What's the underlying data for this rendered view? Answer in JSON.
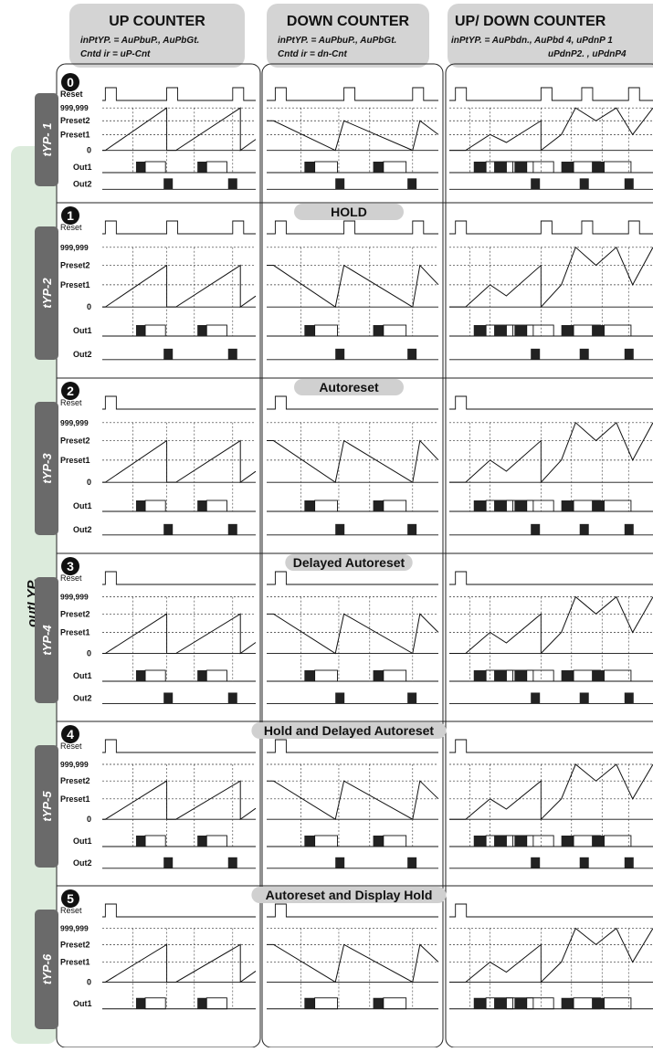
{
  "side_label": "outLYP.",
  "columns": [
    {
      "title": "UP COUNTER",
      "line1": "inPtYP. = AuPbuP., AuPbGt.",
      "line2": "Cntd ir = uP-Cnt"
    },
    {
      "title": "DOWN COUNTER",
      "line1": "inPtYP. = AuPbuP., AuPbGt.",
      "line2": "Cntd ir = dn-Cnt"
    },
    {
      "title": "UP/ DOWN COUNTER",
      "line1": "inPtYP. = AuPbdn., AuPbd 4, uPdnP 1",
      "line2": "uPdnP2. , uPdnP4"
    }
  ],
  "signal_labels": {
    "reset": "Reset",
    "max": "999,999",
    "preset2": "Preset2",
    "preset1": "Preset1",
    "zero": "0",
    "out1": "Out1",
    "out2": "Out2"
  },
  "rows": [
    {
      "number": "0",
      "mode_title": "",
      "typ_label": "tYP- 1"
    },
    {
      "number": "1",
      "mode_title": "HOLD",
      "typ_label": "tYP-2"
    },
    {
      "number": "2",
      "mode_title": "Autoreset",
      "typ_label": "tYP-3"
    },
    {
      "number": "3",
      "mode_title": "Delayed Autoreset",
      "typ_label": "tYP-4"
    },
    {
      "number": "4",
      "mode_title": "Hold and Delayed Autoreset",
      "typ_label": "tYP-5"
    },
    {
      "number": "5",
      "mode_title": "Autoreset and Display Hold",
      "typ_label": "tYP-6"
    }
  ],
  "colors": {
    "header_bg": "#d4d4d4",
    "side_band": "#dcebdc",
    "typ_tab": "#6a6a6a",
    "mode_pill": "#d0d0d0",
    "ink": "#111111"
  }
}
